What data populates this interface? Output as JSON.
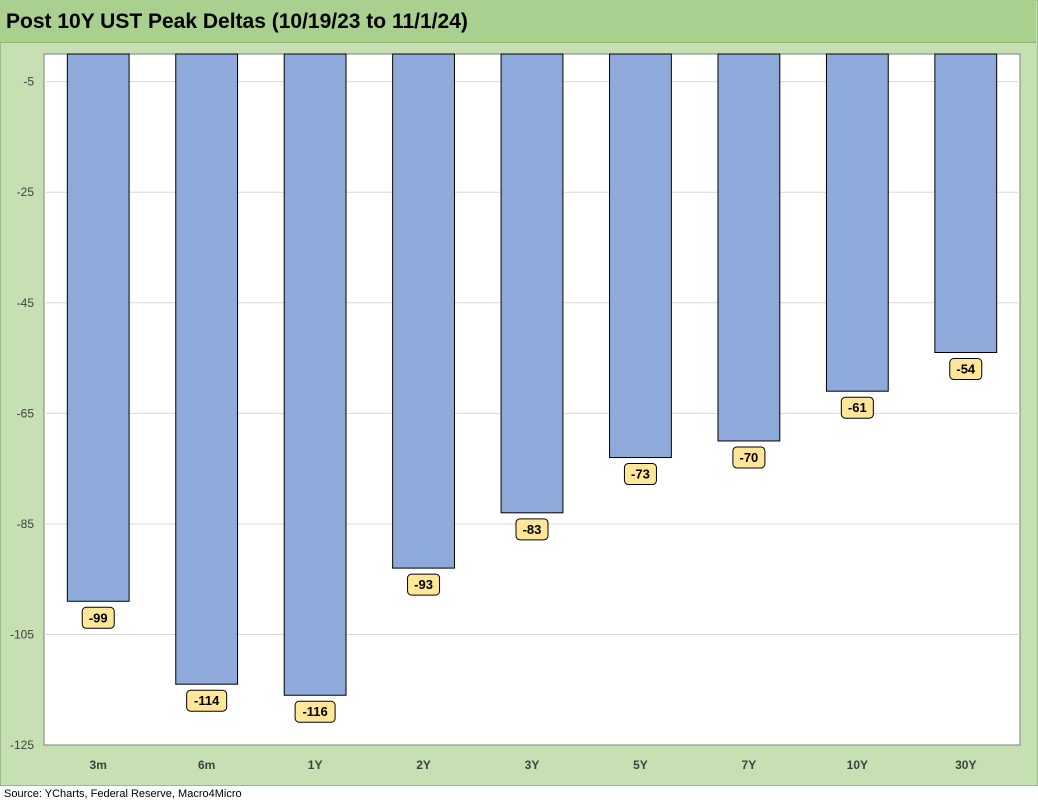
{
  "colors": {
    "bar_fill": "#8eaadb",
    "label_fill": "#ffe699",
    "frame_background": "#c6e0b4",
    "title_background": "#a9d08e",
    "plot_background": "#ffffff"
  },
  "chart_data": {
    "type": "bar",
    "title": "Post 10Y UST Peak Deltas (10/19/23 to 11/1/24)",
    "xlabel": "",
    "ylabel": "",
    "categories": [
      "3m",
      "6m",
      "1Y",
      "2Y",
      "3Y",
      "5Y",
      "7Y",
      "10Y",
      "30Y"
    ],
    "values": [
      -99,
      -114,
      -116,
      -93,
      -83,
      -73,
      -70,
      -61,
      -54
    ],
    "data_labels": [
      "-99",
      "-114",
      "-116",
      "-93",
      "-83",
      "-73",
      "-70",
      "-61",
      "-54"
    ],
    "ylim": [
      -125,
      0
    ],
    "yticks": [
      -5,
      -25,
      -45,
      -65,
      -85,
      -105,
      -125
    ],
    "ytick_labels": [
      "-5",
      "-25",
      "-45",
      "-65",
      "-85",
      "-105",
      "-125"
    ],
    "grid": true,
    "legend": "none"
  },
  "source": "Source: YCharts, Federal Reserve, Macro4Micro"
}
